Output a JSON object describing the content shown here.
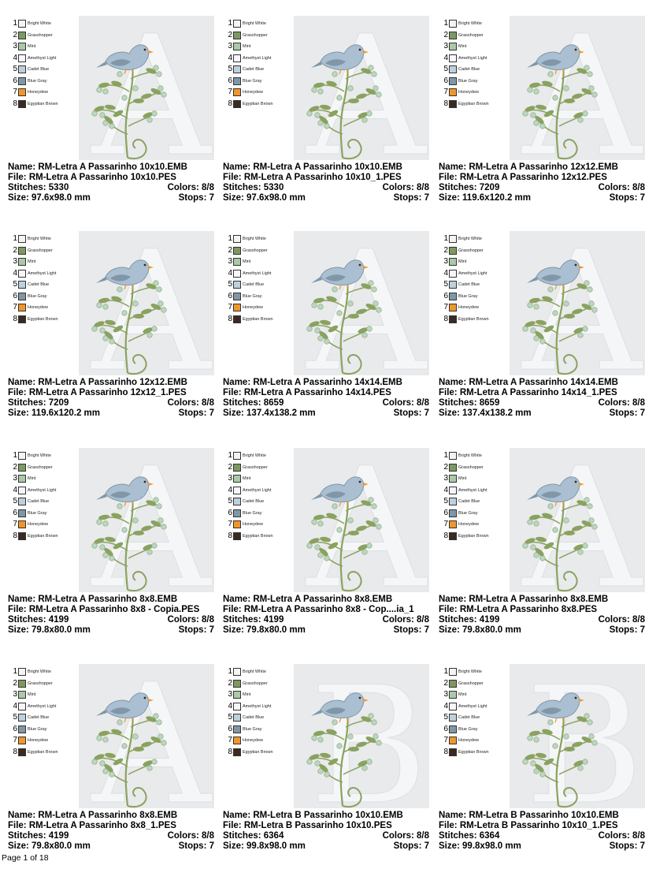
{
  "palette": [
    {
      "num": "1",
      "name": "Bright White",
      "color": "#f4f4f4"
    },
    {
      "num": "2",
      "name": "Grasshopper",
      "color": "#7e9960"
    },
    {
      "num": "3",
      "name": "Mint",
      "color": "#a9c9a7"
    },
    {
      "num": "4",
      "name": "Amethyst Light",
      "color": "#f7f7f9"
    },
    {
      "num": "5",
      "name": "Cadet Blue",
      "color": "#bdd0dc"
    },
    {
      "num": "6",
      "name": "Blue Gray",
      "color": "#7f97a6"
    },
    {
      "num": "7",
      "name": "Honeydew",
      "color": "#f0962a"
    },
    {
      "num": "8",
      "name": "Egyptian Brown",
      "color": "#3a2a22"
    }
  ],
  "designs": [
    {
      "letter": "A",
      "name": "Name: RM-Letra A Passarinho 10x10.EMB",
      "file": "File: RM-Letra A Passarinho 10x10.PES",
      "stitches": "Stitches: 5330",
      "colors": "Colors: 8/8",
      "size": "Size: 97.6x98.0 mm",
      "stops": "Stops: 7"
    },
    {
      "letter": "A",
      "name": "Name: RM-Letra A Passarinho 10x10.EMB",
      "file": "File: RM-Letra A Passarinho 10x10_1.PES",
      "stitches": "Stitches: 5330",
      "colors": "Colors: 8/8",
      "size": "Size: 97.6x98.0 mm",
      "stops": "Stops: 7"
    },
    {
      "letter": "A",
      "name": "Name: RM-Letra A Passarinho 12x12.EMB",
      "file": "File: RM-Letra A Passarinho 12x12.PES",
      "stitches": "Stitches: 7209",
      "colors": "Colors: 8/8",
      "size": "Size: 119.6x120.2 mm",
      "stops": "Stops: 7"
    },
    {
      "letter": "A",
      "name": "Name: RM-Letra A Passarinho 12x12.EMB",
      "file": "File: RM-Letra A Passarinho 12x12_1.PES",
      "stitches": "Stitches: 7209",
      "colors": "Colors: 8/8",
      "size": "Size: 119.6x120.2 mm",
      "stops": "Stops: 7"
    },
    {
      "letter": "A",
      "name": "Name: RM-Letra A Passarinho 14x14.EMB",
      "file": "File: RM-Letra A Passarinho 14x14.PES",
      "stitches": "Stitches: 8659",
      "colors": "Colors: 8/8",
      "size": "Size: 137.4x138.2 mm",
      "stops": "Stops: 7"
    },
    {
      "letter": "A",
      "name": "Name: RM-Letra A Passarinho 14x14.EMB",
      "file": "File: RM-Letra A Passarinho 14x14_1.PES",
      "stitches": "Stitches: 8659",
      "colors": "Colors: 8/8",
      "size": "Size: 137.4x138.2 mm",
      "stops": "Stops: 7"
    },
    {
      "letter": "A",
      "name": "Name: RM-Letra A Passarinho 8x8.EMB",
      "file": "File: RM-Letra A Passarinho 8x8 - Copia.PES",
      "stitches": "Stitches: 4199",
      "colors": "Colors: 8/8",
      "size": "Size: 79.8x80.0 mm",
      "stops": "Stops: 7"
    },
    {
      "letter": "A",
      "name": "Name: RM-Letra A Passarinho 8x8.EMB",
      "file": "File: RM-Letra A Passarinho 8x8 - Cop....ia_1",
      "stitches": "Stitches: 4199",
      "colors": "Colors: 8/8",
      "size": "Size: 79.8x80.0 mm",
      "stops": "Stops: 7"
    },
    {
      "letter": "A",
      "name": "Name: RM-Letra A Passarinho 8x8.EMB",
      "file": "File: RM-Letra A Passarinho 8x8.PES",
      "stitches": "Stitches: 4199",
      "colors": "Colors: 8/8",
      "size": "Size: 79.8x80.0 mm",
      "stops": "Stops: 7"
    },
    {
      "letter": "A",
      "name": "Name: RM-Letra A Passarinho 8x8.EMB",
      "file": "File: RM-Letra A Passarinho 8x8_1.PES",
      "stitches": "Stitches: 4199",
      "colors": "Colors: 8/8",
      "size": "Size: 79.8x80.0 mm",
      "stops": "Stops: 7"
    },
    {
      "letter": "B",
      "name": "Name: RM-Letra B  Passarinho 10x10.EMB",
      "file": "File: RM-Letra B  Passarinho 10x10.PES",
      "stitches": "Stitches: 6364",
      "colors": "Colors: 8/8",
      "size": "Size: 99.8x98.0 mm",
      "stops": "Stops: 7"
    },
    {
      "letter": "B",
      "name": "Name: RM-Letra B  Passarinho 10x10.EMB",
      "file": "File: RM-Letra B  Passarinho 10x10_1.PES",
      "stitches": "Stitches: 6364",
      "colors": "Colors: 8/8",
      "size": "Size: 99.8x98.0 mm",
      "stops": "Stops: 7"
    }
  ],
  "footer": "Page 1 of 18"
}
